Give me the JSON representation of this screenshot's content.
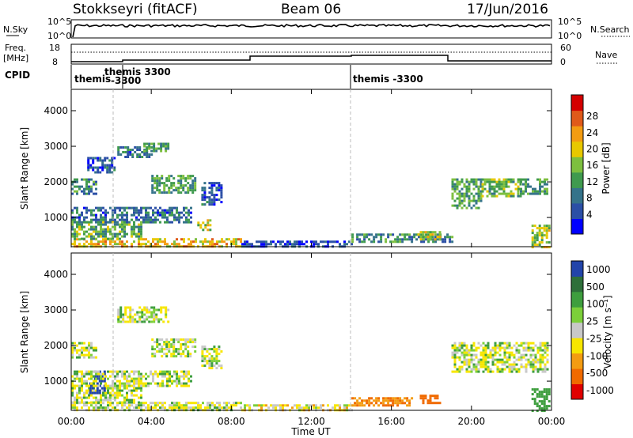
{
  "header": {
    "station": "Stokkseyri (fitACF)",
    "beam": "Beam 06",
    "date": "17/Jun/2016"
  },
  "top_panels": {
    "nsky_label": "N.Sky",
    "nsearch_label": "N.Search",
    "nsky_ticks": [
      "10^5",
      "10^0"
    ],
    "nsearch_ticks": [
      "10^5",
      "10^0"
    ],
    "freq_label_1": "Freq.",
    "freq_label_2": "[MHz]",
    "freq_ticks": [
      "18",
      "8"
    ],
    "nave_label": "Nave",
    "nave_ticks": [
      "60",
      "0"
    ],
    "cpid_label": "CPID",
    "cpid_entries": [
      {
        "line1": "themis",
        "line2": "",
        "time": 0
      },
      {
        "line1": "themis 3300",
        "line2": "-3300",
        "time": 2.0
      },
      {
        "line1": "themis -3300",
        "line2": "",
        "time": 14.0
      }
    ]
  },
  "chart_data": [
    {
      "type": "heatmap",
      "name": "power",
      "ylabel": "Slant Range [km]",
      "xlabel": "Time UT",
      "xlim": [
        0,
        24
      ],
      "ylim": [
        180,
        4600
      ],
      "yticks": [
        "1000",
        "2000",
        "3000",
        "4000"
      ],
      "xticks": [
        "00:00",
        "04:00",
        "08:00",
        "12:00",
        "16:00",
        "20:00",
        "00:00"
      ],
      "colorbar_label": "Power [dB]",
      "colorbar_ticks": [
        "4",
        "8",
        "12",
        "16",
        "20",
        "24",
        "28"
      ],
      "colorbar_colors": [
        "#0000ff",
        "#2b4fa6",
        "#35738a",
        "#3f9a4e",
        "#7dbf3f",
        "#e8c800",
        "#f39c12",
        "#e05a1a",
        "#d40000"
      ],
      "regions": [
        {
          "t0": 0.0,
          "t1": 8.5,
          "r0": 200,
          "r1": 420,
          "v": 22
        },
        {
          "t0": 0.0,
          "t1": 3.5,
          "r0": 420,
          "r1": 900,
          "v": 15
        },
        {
          "t0": 0.0,
          "t1": 6.0,
          "r0": 900,
          "r1": 1300,
          "v": 10
        },
        {
          "t0": 0.0,
          "t1": 1.3,
          "r0": 1700,
          "r1": 2100,
          "v": 12
        },
        {
          "t0": 0.8,
          "t1": 2.2,
          "r0": 2300,
          "r1": 2700,
          "v": 8
        },
        {
          "t0": 2.3,
          "t1": 4.0,
          "r0": 2700,
          "r1": 3000,
          "v": 10
        },
        {
          "t0": 3.6,
          "t1": 4.8,
          "r0": 2850,
          "r1": 3100,
          "v": 14
        },
        {
          "t0": 4.0,
          "t1": 6.2,
          "r0": 1700,
          "r1": 2200,
          "v": 14
        },
        {
          "t0": 6.3,
          "t1": 7.0,
          "r0": 650,
          "r1": 950,
          "v": 18
        },
        {
          "t0": 6.5,
          "t1": 7.5,
          "r0": 1400,
          "r1": 2000,
          "v": 8
        },
        {
          "t0": 8.5,
          "t1": 14.0,
          "r0": 200,
          "r1": 350,
          "v": 6
        },
        {
          "t0": 14.0,
          "t1": 19.0,
          "r0": 300,
          "r1": 550,
          "v": 12
        },
        {
          "t0": 17.3,
          "t1": 18.4,
          "r0": 380,
          "r1": 620,
          "v": 20
        },
        {
          "t0": 19.0,
          "t1": 20.5,
          "r0": 1300,
          "r1": 2100,
          "v": 14
        },
        {
          "t0": 20.5,
          "t1": 22.5,
          "r0": 1600,
          "r1": 2100,
          "v": 16
        },
        {
          "t0": 22.3,
          "t1": 23.8,
          "r0": 1700,
          "r1": 2100,
          "v": 14
        },
        {
          "t0": 23.0,
          "t1": 23.9,
          "r0": 200,
          "r1": 800,
          "v": 18
        }
      ]
    },
    {
      "type": "heatmap",
      "name": "velocity",
      "ylabel": "Slant Range [km]",
      "xlabel": "Time UT",
      "xlim": [
        0,
        24
      ],
      "ylim": [
        180,
        4600
      ],
      "yticks": [
        "1000",
        "2000",
        "3000",
        "4000"
      ],
      "xticks": [
        "00:00",
        "04:00",
        "08:00",
        "12:00",
        "16:00",
        "20:00",
        "00:00"
      ],
      "colorbar_label": "Velocity [m s⁻¹]",
      "colorbar_ticks": [
        "1000",
        "500",
        "100",
        "25",
        "-25",
        "-100",
        "-500",
        "-1000"
      ],
      "colorbar_colors": [
        "#2244aa",
        "#2e6f3a",
        "#3e9e3e",
        "#7ccf3a",
        "#c8c8c8",
        "#f7e600",
        "#f39c12",
        "#f06a00",
        "#e00000"
      ],
      "regions": [
        {
          "t0": 0.0,
          "t1": 8.5,
          "r0": 200,
          "r1": 420,
          "v": 0
        },
        {
          "t0": 0.0,
          "t1": 3.5,
          "r0": 420,
          "r1": 900,
          "v": 0
        },
        {
          "t0": 0.9,
          "t1": 1.7,
          "r0": 700,
          "r1": 1300,
          "v": 800
        },
        {
          "t0": 0.0,
          "t1": 6.0,
          "r0": 900,
          "r1": 1300,
          "v": 0
        },
        {
          "t0": 0.0,
          "t1": 1.3,
          "r0": 1700,
          "r1": 2100,
          "v": 0
        },
        {
          "t0": 2.3,
          "t1": 4.8,
          "r0": 2700,
          "r1": 3100,
          "v": 0
        },
        {
          "t0": 4.0,
          "t1": 6.2,
          "r0": 1700,
          "r1": 2200,
          "v": 0
        },
        {
          "t0": 6.5,
          "t1": 7.5,
          "r0": 1400,
          "r1": 2000,
          "v": 0
        },
        {
          "t0": 8.5,
          "t1": 14.0,
          "r0": 200,
          "r1": 350,
          "v": -60
        },
        {
          "t0": 14.0,
          "t1": 17.0,
          "r0": 300,
          "r1": 550,
          "v": -300
        },
        {
          "t0": 17.3,
          "t1": 18.4,
          "r0": 380,
          "r1": 620,
          "v": -400
        },
        {
          "t0": 19.0,
          "t1": 23.8,
          "r0": 1300,
          "r1": 2100,
          "v": 0
        },
        {
          "t0": 23.0,
          "t1": 23.9,
          "r0": 200,
          "r1": 800,
          "v": 200
        }
      ]
    }
  ]
}
